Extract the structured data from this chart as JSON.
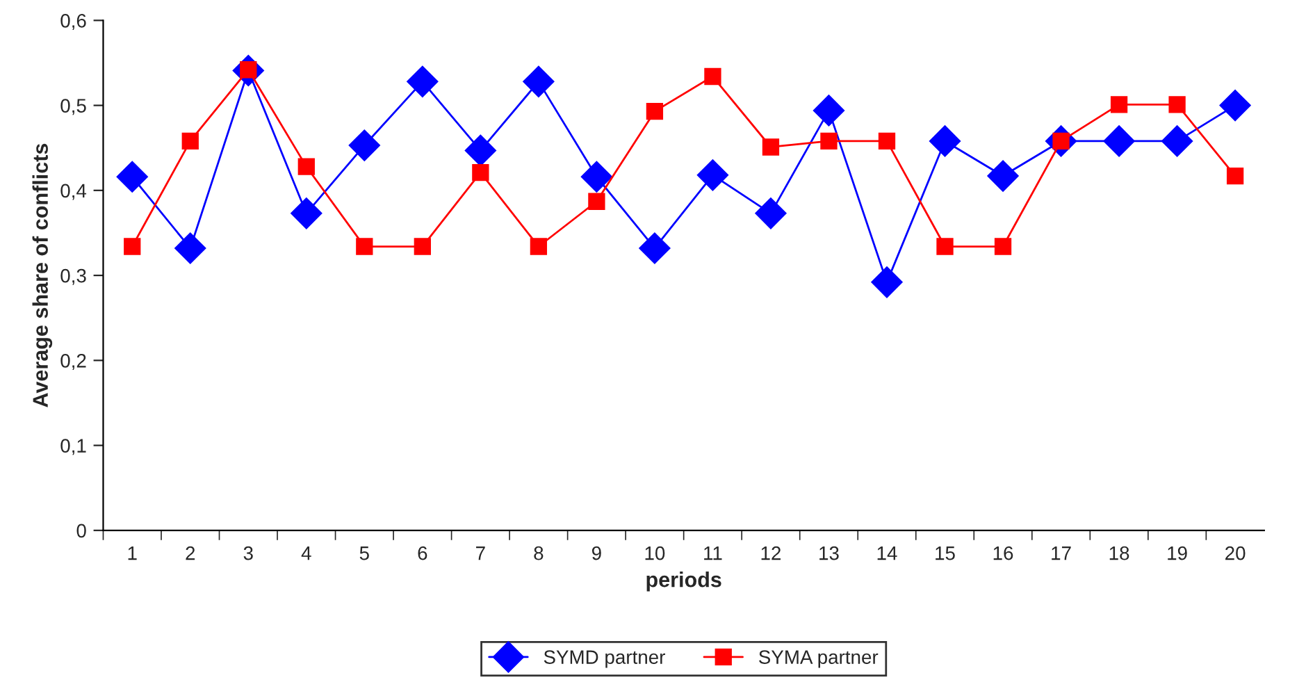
{
  "chart_data": {
    "type": "line",
    "xlabel": "periods",
    "ylabel": "Average share of conflicts",
    "categories": [
      "1",
      "2",
      "3",
      "4",
      "5",
      "6",
      "7",
      "8",
      "9",
      "10",
      "11",
      "12",
      "13",
      "14",
      "15",
      "16",
      "17",
      "18",
      "19",
      "20"
    ],
    "series": [
      {
        "name": "SYMD partner",
        "color": "#0000ff",
        "marker": "diamond",
        "values": [
          0.416,
          0.332,
          0.541,
          0.373,
          0.453,
          0.528,
          0.447,
          0.528,
          0.416,
          0.332,
          0.418,
          0.373,
          0.494,
          0.292,
          0.458,
          0.417,
          0.458,
          0.458,
          0.458,
          0.5
        ]
      },
      {
        "name": "SYMA partner",
        "color": "#ff0000",
        "marker": "square",
        "values": [
          0.334,
          0.458,
          0.542,
          0.428,
          0.334,
          0.334,
          0.421,
          0.334,
          0.387,
          0.493,
          0.534,
          0.451,
          0.458,
          0.458,
          0.334,
          0.334,
          0.458,
          0.501,
          0.501,
          0.417
        ]
      }
    ],
    "ylim": [
      0,
      0.6
    ],
    "yticks": [
      {
        "value": 0,
        "label": "0"
      },
      {
        "value": 0.1,
        "label": "0,1"
      },
      {
        "value": 0.2,
        "label": "0,2"
      },
      {
        "value": 0.3,
        "label": "0,3"
      },
      {
        "value": 0.4,
        "label": "0,4"
      },
      {
        "value": 0.5,
        "label": "0,5"
      },
      {
        "value": 0.6,
        "label": "0,6"
      }
    ],
    "grid": false,
    "legend": "bottom",
    "line_style": "solid"
  }
}
